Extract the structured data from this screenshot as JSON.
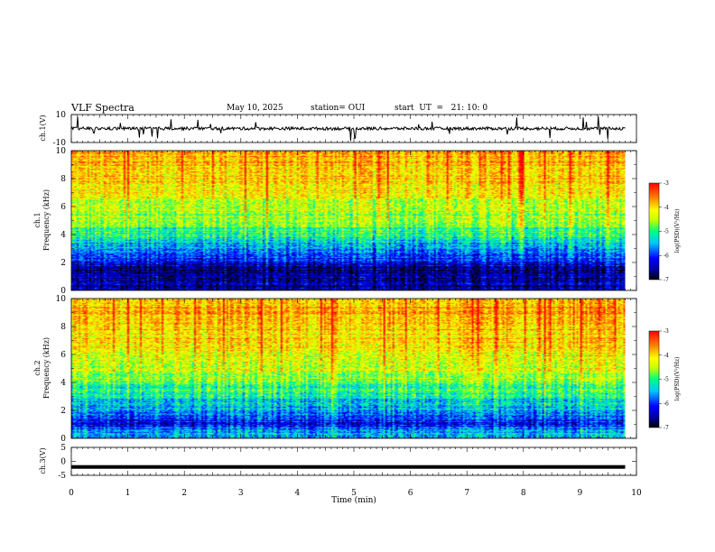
{
  "header": {
    "title": "VLF Spectra",
    "date": "May 10, 2025",
    "station": "station= OUI",
    "start": "start  UT  =   21: 10: 0"
  },
  "colors": {
    "colormap": [
      "#000000",
      "#0000a0",
      "#0000ff",
      "#00c8ff",
      "#00ff80",
      "#c8ff00",
      "#ffff00",
      "#ff8000",
      "#ff0000"
    ],
    "trace": "#000000",
    "axes": "#000000"
  },
  "chart_data": [
    {
      "type": "line",
      "panel": "ch1-waveform",
      "ylabel": "ch.1(V)",
      "ylim": [
        -10,
        10
      ],
      "yticks": [
        "10",
        "-10"
      ],
      "xlim": [
        0,
        9.8
      ],
      "x": [
        0,
        1,
        2,
        3,
        4,
        5,
        6,
        7,
        8,
        9,
        9.8
      ],
      "y": [
        0,
        0,
        0,
        0,
        0,
        0,
        0,
        0,
        0,
        0,
        0
      ],
      "note_levels": "noise trace near 0 V with spikes up to about ±9 V"
    },
    {
      "type": "heatmap",
      "panel": "ch1-spectrogram",
      "ylabel": "ch.1\nFrequency (kHz)",
      "ylabel_top": "ch.1",
      "ylabel_bottom": "Frequency (kHz)",
      "ylim": [
        0,
        10
      ],
      "yticks": [
        "0",
        "2",
        "4",
        "6",
        "8",
        "10"
      ],
      "xlim": [
        0,
        9.8
      ],
      "colorbar": {
        "label": "log(PSD)(V²/Hz)",
        "range": [
          -7,
          -3
        ],
        "ticks": [
          "-3",
          "-4",
          "-5",
          "-6",
          "-7"
        ]
      },
      "profile_kHz": [
        0.5,
        1,
        1.5,
        2,
        2.5,
        3,
        3.5,
        4,
        5,
        6,
        7,
        8,
        9,
        10
      ],
      "profile_logPSD": [
        -6.5,
        -6.6,
        -6.6,
        -6.2,
        -5.9,
        -5.6,
        -5.3,
        -5.0,
        -4.7,
        -4.5,
        -4.2,
        -4.0,
        -3.9,
        -3.9
      ]
    },
    {
      "type": "heatmap",
      "panel": "ch2-spectrogram",
      "ylabel": "ch.2\nFrequency (kHz)",
      "ylabel_top": "ch.2",
      "ylabel_bottom": "Frequency (kHz)",
      "ylim": [
        0,
        10
      ],
      "yticks": [
        "0",
        "2",
        "4",
        "6",
        "8",
        "10"
      ],
      "xlim": [
        0,
        9.8
      ],
      "colorbar": {
        "label": "log(PSD)(V²/Hz)",
        "range": [
          -7,
          -3
        ],
        "ticks": [
          "-3",
          "-4",
          "-5",
          "-6",
          "-7"
        ]
      },
      "profile_kHz": [
        0.5,
        1,
        1.5,
        2,
        2.5,
        3,
        3.5,
        4,
        5,
        6,
        7,
        8,
        9,
        10
      ],
      "profile_logPSD": [
        -5.6,
        -6.2,
        -5.8,
        -5.6,
        -5.4,
        -5.2,
        -5.0,
        -4.7,
        -4.4,
        -4.2,
        -4.0,
        -3.9,
        -3.8,
        -3.8
      ]
    },
    {
      "type": "line",
      "panel": "ch3-waveform",
      "ylabel": "ch.3(V)",
      "ylim": [
        -5,
        5
      ],
      "yticks": [
        "5",
        "0",
        "-5"
      ],
      "xlim": [
        0,
        9.8
      ],
      "x": [
        0,
        9.8
      ],
      "y": [
        -2,
        -2
      ]
    }
  ],
  "xaxis": {
    "label": "Time (min)",
    "ticks": [
      "0",
      "1",
      "2",
      "3",
      "4",
      "5",
      "6",
      "7",
      "8",
      "9",
      "10"
    ],
    "range": [
      0,
      10
    ]
  }
}
